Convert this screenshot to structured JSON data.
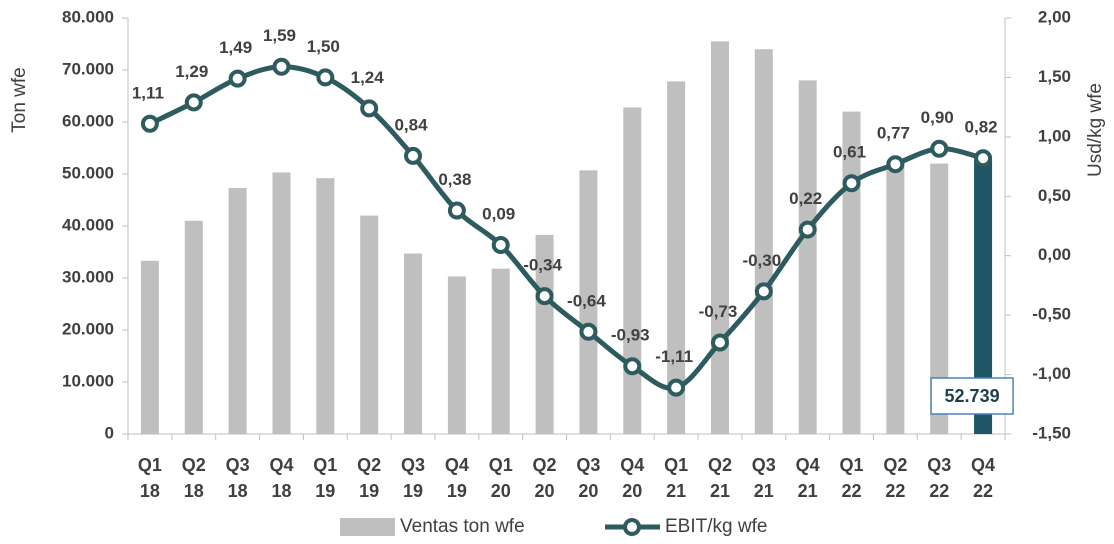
{
  "chart_data": {
    "type": "bar",
    "categories": [
      "Q1 18",
      "Q2 18",
      "Q3 18",
      "Q4 18",
      "Q1 19",
      "Q2 19",
      "Q3 19",
      "Q4 19",
      "Q1 20",
      "Q2 20",
      "Q3 20",
      "Q4 20",
      "Q1 21",
      "Q2 21",
      "Q3 21",
      "Q4 21",
      "Q1 22",
      "Q2 22",
      "Q3 22",
      "Q4 22"
    ],
    "y_label": "Ton wfe",
    "y2_label": "Usd/kg wfe",
    "ylim": [
      0,
      80000
    ],
    "yticks": [
      0,
      {
        "value": 10000,
        "label": "10.000"
      },
      {
        "value": 20000,
        "label": "20.000"
      },
      {
        "value": 30000,
        "label": "30.000"
      },
      {
        "value": 40000,
        "label": "40.000"
      },
      {
        "value": 50000,
        "label": "50.000"
      },
      {
        "value": 60000,
        "label": "60.000"
      },
      {
        "value": 70000,
        "label": "70.000"
      },
      {
        "value": 80000,
        "label": "80.000"
      }
    ],
    "y2lim": [
      -1.5,
      2
    ],
    "y2ticks": [
      {
        "value": -1.5,
        "label": "-1,50"
      },
      {
        "value": -1,
        "label": "-1,00"
      },
      {
        "value": -0.5,
        "label": "-0,50"
      },
      {
        "value": 0,
        "label": "0,00"
      },
      {
        "value": 0.5,
        "label": "0,50"
      },
      {
        "value": 1,
        "label": "1,00"
      },
      {
        "value": 1.5,
        "label": "1,50"
      },
      {
        "value": 2,
        "label": "2,00"
      }
    ],
    "series": [
      {
        "name": "Ventas ton wfe",
        "type": "bar",
        "color": "#bfbfbf",
        "colors": [
          "#bfbfbf",
          "#bfbfbf",
          "#bfbfbf",
          "#bfbfbf",
          "#bfbfbf",
          "#bfbfbf",
          "#bfbfbf",
          "#bfbfbf",
          "#bfbfbf",
          "#bfbfbf",
          "#bfbfbf",
          "#bfbfbf",
          "#bfbfbf",
          "#bfbfbf",
          "#bfbfbf",
          "#bfbfbf",
          "#bfbfbf",
          "#bfbfbf",
          "#bfbfbf",
          "#1f5564"
        ],
        "values": [
          33300,
          41000,
          47300,
          50300,
          49200,
          42000,
          34700,
          30300,
          31800,
          38300,
          50700,
          62800,
          67800,
          75500,
          74000,
          68000,
          62000,
          52500,
          52000,
          52739
        ],
        "value_labels": [
          null,
          null,
          null,
          null,
          null,
          null,
          null,
          null,
          null,
          null,
          null,
          null,
          null,
          null,
          null,
          null,
          null,
          null,
          null,
          "52.739"
        ]
      },
      {
        "name": "EBIT/kg wfe",
        "type": "line",
        "axis": "y2",
        "color": "#2e5b5e",
        "values": [
          1.11,
          1.29,
          1.49,
          1.59,
          1.5,
          1.24,
          0.84,
          0.38,
          0.09,
          -0.34,
          -0.64,
          -0.93,
          -1.11,
          -0.73,
          -0.3,
          0.22,
          0.61,
          0.77,
          0.9,
          0.82
        ],
        "value_labels": [
          "1,11",
          "1,29",
          "1,49",
          "1,59",
          "1,50",
          "1,24",
          "0,84",
          "0,38",
          "0,09",
          "-0,34",
          "-0,64",
          "-0,93",
          "-1,11",
          "-0,73",
          "-0,30",
          "0,22",
          "0,61",
          "0,77",
          "0,90",
          "0,82"
        ]
      }
    ]
  }
}
